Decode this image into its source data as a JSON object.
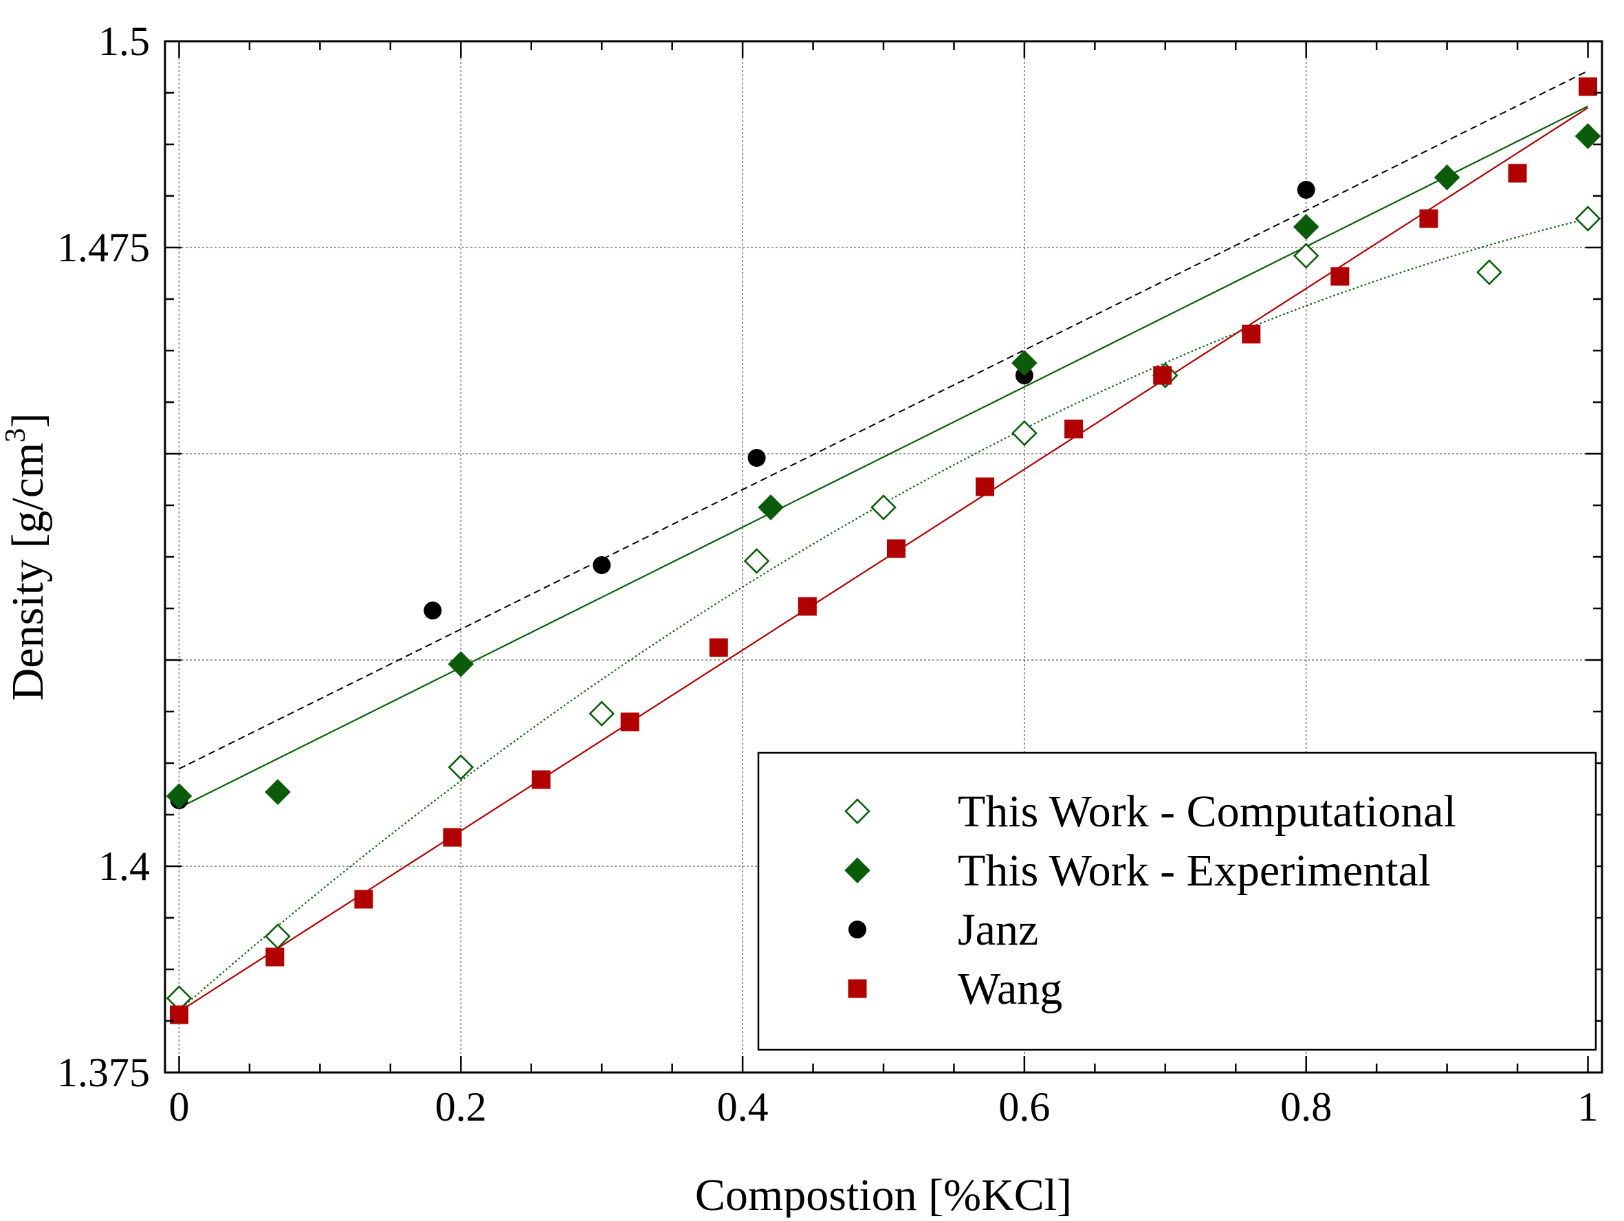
{
  "chart_data": {
    "type": "scatter",
    "xlabel": "Compostion [%KCl]",
    "ylabel": "Density [g/cm3]",
    "ylabel_main": "Density [g/cm",
    "ylabel_sup": "3",
    "ylabel_end": "]",
    "xlim": [
      -0.01,
      1.01
    ],
    "ylim": [
      1.375,
      1.5
    ],
    "xticks": [
      0,
      0.2,
      0.4,
      0.6,
      0.8,
      1
    ],
    "xtick_labels": [
      "0",
      "0.2",
      "0.4",
      "0.6",
      "0.8",
      "1"
    ],
    "yticks": [
      1.375,
      1.4,
      1.475,
      1.5
    ],
    "ytick_labels": [
      "1.375",
      "1.4",
      "1.475",
      "1.5"
    ],
    "ygrid": [
      1.4,
      1.425,
      1.45,
      1.475
    ],
    "grid": true,
    "legend_position": "bottom-right",
    "series": [
      {
        "name": "This Work - Computational",
        "marker": "diamond-open",
        "color": "#0a5c0a",
        "points": [
          [
            0,
            1.384
          ],
          [
            0.07,
            1.3915
          ],
          [
            0.2,
            1.412
          ],
          [
            0.3,
            1.4185
          ],
          [
            0.41,
            1.437
          ],
          [
            0.5,
            1.4435
          ],
          [
            0.6,
            1.4525
          ],
          [
            0.7,
            1.4595
          ],
          [
            0.8,
            1.474
          ],
          [
            0.93,
            1.472
          ],
          [
            1,
            1.4785
          ]
        ],
        "fit": "quadratic",
        "fit_style": "dotted"
      },
      {
        "name": "This Work - Experimental",
        "marker": "diamond-filled",
        "color": "#0a5c0a",
        "points": [
          [
            0,
            1.4085
          ],
          [
            0.07,
            1.409
          ],
          [
            0.2,
            1.4245
          ],
          [
            0.42,
            1.4435
          ],
          [
            0.6,
            1.461
          ],
          [
            0.8,
            1.4775
          ],
          [
            0.9,
            1.4835
          ],
          [
            1,
            1.4885
          ]
        ],
        "fit": "linear",
        "fit_style": "solid"
      },
      {
        "name": "Janz",
        "marker": "circle-filled",
        "color": "#000000",
        "points": [
          [
            0,
            1.408
          ],
          [
            0.18,
            1.431
          ],
          [
            0.3,
            1.4365
          ],
          [
            0.41,
            1.4495
          ],
          [
            0.6,
            1.4595
          ],
          [
            0.8,
            1.482
          ],
          [
            1,
            1.4945
          ]
        ],
        "fit": "linear",
        "fit_style": "dashed"
      },
      {
        "name": "Wang",
        "marker": "square-filled",
        "color": "#b00000",
        "points": [
          [
            0,
            1.382
          ],
          [
            0.068,
            1.389
          ],
          [
            0.131,
            1.396
          ],
          [
            0.194,
            1.4035
          ],
          [
            0.257,
            1.4105
          ],
          [
            0.32,
            1.4175
          ],
          [
            0.383,
            1.4265
          ],
          [
            0.446,
            1.4315
          ],
          [
            0.509,
            1.4385
          ],
          [
            0.572,
            1.446
          ],
          [
            0.635,
            1.453
          ],
          [
            0.698,
            1.4595
          ],
          [
            0.761,
            1.4645
          ],
          [
            0.824,
            1.4715
          ],
          [
            0.887,
            1.4785
          ],
          [
            0.95,
            1.484
          ],
          [
            1,
            1.4945
          ]
        ],
        "fit": "linear",
        "fit_style": "solid"
      }
    ]
  }
}
